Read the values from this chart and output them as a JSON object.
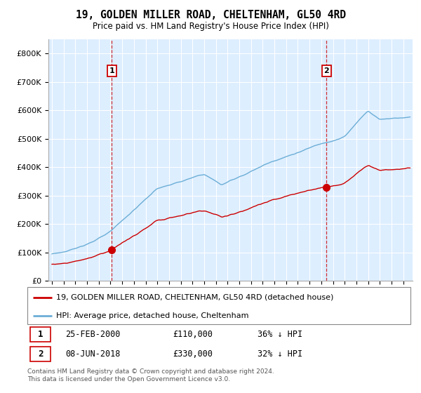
{
  "title": "19, GOLDEN MILLER ROAD, CHELTENHAM, GL50 4RD",
  "subtitle": "Price paid vs. HM Land Registry's House Price Index (HPI)",
  "hpi_label": "HPI: Average price, detached house, Cheltenham",
  "property_label": "19, GOLDEN MILLER ROAD, CHELTENHAM, GL50 4RD (detached house)",
  "footnote": "Contains HM Land Registry data © Crown copyright and database right 2024.\nThis data is licensed under the Open Government Licence v3.0.",
  "sale1_date": "25-FEB-2000",
  "sale1_price": 110000,
  "sale1_note": "36% ↓ HPI",
  "sale1_year": 2000.12,
  "sale2_date": "08-JUN-2018",
  "sale2_price": 330000,
  "sale2_note": "32% ↓ HPI",
  "sale2_year": 2018.44,
  "hpi_color": "#6baed6",
  "property_color": "#cc0000",
  "bg_fill_color": "#ddeeff",
  "ylim": [
    0,
    850000
  ],
  "yticks": [
    0,
    100000,
    200000,
    300000,
    400000,
    500000,
    600000,
    700000,
    800000
  ],
  "xmin": 1994.7,
  "xmax": 2025.8,
  "grid_color": "#cccccc"
}
